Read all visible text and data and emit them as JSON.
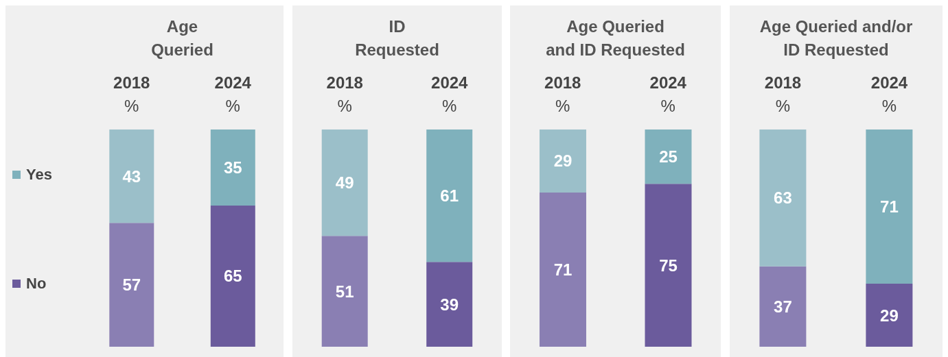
{
  "chart_data": [
    {
      "type": "bar",
      "stacked": true,
      "title": "Age\nQueried",
      "categories": [
        "2018 %",
        "2024 %"
      ],
      "data_labels": true,
      "legend": "left",
      "series": [
        {
          "name": "No",
          "color": "#6b5b9c",
          "colors": [
            "#8a7fb3",
            "#6b5b9c"
          ],
          "values": [
            57,
            65
          ]
        },
        {
          "name": "Yes",
          "color": "#7fb1bc",
          "colors": [
            "#9bbfc9",
            "#7fb1bc"
          ],
          "values": [
            43,
            35
          ]
        }
      ]
    },
    {
      "type": "bar",
      "stacked": true,
      "title": "ID\nRequested",
      "categories": [
        "2018 %",
        "2024 %"
      ],
      "data_labels": true,
      "series": [
        {
          "colors": [
            "#8a7fb3",
            "#6b5b9c"
          ],
          "values": [
            51,
            39
          ]
        },
        {
          "colors": [
            "#9bbfc9",
            "#7fb1bc"
          ],
          "values": [
            49,
            61
          ]
        }
      ]
    },
    {
      "type": "bar",
      "stacked": true,
      "title": "Age Queried\nand ID Requested",
      "categories": [
        "2018 %",
        "2024 %"
      ],
      "data_labels": true,
      "series": [
        {
          "colors": [
            "#8a7fb3",
            "#6b5b9c"
          ],
          "values": [
            71,
            75
          ]
        },
        {
          "colors": [
            "#9bbfc9",
            "#7fb1bc"
          ],
          "values": [
            29,
            25
          ]
        }
      ]
    },
    {
      "type": "bar",
      "stacked": true,
      "title": "Age Queried and/or\nID Requested",
      "categories": [
        "2018 %",
        "2024 %"
      ],
      "data_labels": true,
      "series": [
        {
          "colors": [
            "#8a7fb3",
            "#6b5b9c"
          ],
          "values": [
            37,
            29
          ]
        },
        {
          "colors": [
            "#9bbfc9",
            "#7fb1bc"
          ],
          "values": [
            63,
            71
          ]
        }
      ]
    }
  ]
}
